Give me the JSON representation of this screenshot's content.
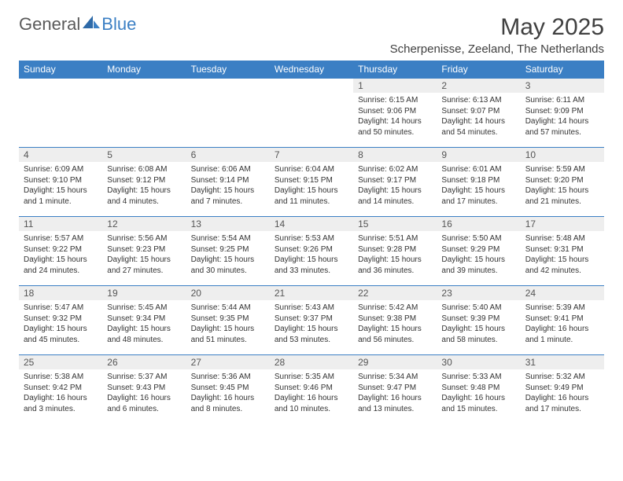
{
  "brand": {
    "general": "General",
    "blue": "Blue",
    "brand_color": "#3b7fc4",
    "text_color": "#5a5a5a"
  },
  "title": {
    "month": "May 2025",
    "location": "Scherpenisse, Zeeland, The Netherlands"
  },
  "colors": {
    "header_bg": "#3b7fc4",
    "header_text": "#ffffff",
    "daynum_bg": "#eeeeee",
    "border": "#3b7fc4",
    "body_text": "#333333"
  },
  "day_headers": [
    "Sunday",
    "Monday",
    "Tuesday",
    "Wednesday",
    "Thursday",
    "Friday",
    "Saturday"
  ],
  "weeks": [
    [
      {
        "day": "",
        "sunrise": "",
        "sunset": "",
        "daylight": ""
      },
      {
        "day": "",
        "sunrise": "",
        "sunset": "",
        "daylight": ""
      },
      {
        "day": "",
        "sunrise": "",
        "sunset": "",
        "daylight": ""
      },
      {
        "day": "",
        "sunrise": "",
        "sunset": "",
        "daylight": ""
      },
      {
        "day": "1",
        "sunrise": "Sunrise: 6:15 AM",
        "sunset": "Sunset: 9:06 PM",
        "daylight": "Daylight: 14 hours and 50 minutes."
      },
      {
        "day": "2",
        "sunrise": "Sunrise: 6:13 AM",
        "sunset": "Sunset: 9:07 PM",
        "daylight": "Daylight: 14 hours and 54 minutes."
      },
      {
        "day": "3",
        "sunrise": "Sunrise: 6:11 AM",
        "sunset": "Sunset: 9:09 PM",
        "daylight": "Daylight: 14 hours and 57 minutes."
      }
    ],
    [
      {
        "day": "4",
        "sunrise": "Sunrise: 6:09 AM",
        "sunset": "Sunset: 9:10 PM",
        "daylight": "Daylight: 15 hours and 1 minute."
      },
      {
        "day": "5",
        "sunrise": "Sunrise: 6:08 AM",
        "sunset": "Sunset: 9:12 PM",
        "daylight": "Daylight: 15 hours and 4 minutes."
      },
      {
        "day": "6",
        "sunrise": "Sunrise: 6:06 AM",
        "sunset": "Sunset: 9:14 PM",
        "daylight": "Daylight: 15 hours and 7 minutes."
      },
      {
        "day": "7",
        "sunrise": "Sunrise: 6:04 AM",
        "sunset": "Sunset: 9:15 PM",
        "daylight": "Daylight: 15 hours and 11 minutes."
      },
      {
        "day": "8",
        "sunrise": "Sunrise: 6:02 AM",
        "sunset": "Sunset: 9:17 PM",
        "daylight": "Daylight: 15 hours and 14 minutes."
      },
      {
        "day": "9",
        "sunrise": "Sunrise: 6:01 AM",
        "sunset": "Sunset: 9:18 PM",
        "daylight": "Daylight: 15 hours and 17 minutes."
      },
      {
        "day": "10",
        "sunrise": "Sunrise: 5:59 AM",
        "sunset": "Sunset: 9:20 PM",
        "daylight": "Daylight: 15 hours and 21 minutes."
      }
    ],
    [
      {
        "day": "11",
        "sunrise": "Sunrise: 5:57 AM",
        "sunset": "Sunset: 9:22 PM",
        "daylight": "Daylight: 15 hours and 24 minutes."
      },
      {
        "day": "12",
        "sunrise": "Sunrise: 5:56 AM",
        "sunset": "Sunset: 9:23 PM",
        "daylight": "Daylight: 15 hours and 27 minutes."
      },
      {
        "day": "13",
        "sunrise": "Sunrise: 5:54 AM",
        "sunset": "Sunset: 9:25 PM",
        "daylight": "Daylight: 15 hours and 30 minutes."
      },
      {
        "day": "14",
        "sunrise": "Sunrise: 5:53 AM",
        "sunset": "Sunset: 9:26 PM",
        "daylight": "Daylight: 15 hours and 33 minutes."
      },
      {
        "day": "15",
        "sunrise": "Sunrise: 5:51 AM",
        "sunset": "Sunset: 9:28 PM",
        "daylight": "Daylight: 15 hours and 36 minutes."
      },
      {
        "day": "16",
        "sunrise": "Sunrise: 5:50 AM",
        "sunset": "Sunset: 9:29 PM",
        "daylight": "Daylight: 15 hours and 39 minutes."
      },
      {
        "day": "17",
        "sunrise": "Sunrise: 5:48 AM",
        "sunset": "Sunset: 9:31 PM",
        "daylight": "Daylight: 15 hours and 42 minutes."
      }
    ],
    [
      {
        "day": "18",
        "sunrise": "Sunrise: 5:47 AM",
        "sunset": "Sunset: 9:32 PM",
        "daylight": "Daylight: 15 hours and 45 minutes."
      },
      {
        "day": "19",
        "sunrise": "Sunrise: 5:45 AM",
        "sunset": "Sunset: 9:34 PM",
        "daylight": "Daylight: 15 hours and 48 minutes."
      },
      {
        "day": "20",
        "sunrise": "Sunrise: 5:44 AM",
        "sunset": "Sunset: 9:35 PM",
        "daylight": "Daylight: 15 hours and 51 minutes."
      },
      {
        "day": "21",
        "sunrise": "Sunrise: 5:43 AM",
        "sunset": "Sunset: 9:37 PM",
        "daylight": "Daylight: 15 hours and 53 minutes."
      },
      {
        "day": "22",
        "sunrise": "Sunrise: 5:42 AM",
        "sunset": "Sunset: 9:38 PM",
        "daylight": "Daylight: 15 hours and 56 minutes."
      },
      {
        "day": "23",
        "sunrise": "Sunrise: 5:40 AM",
        "sunset": "Sunset: 9:39 PM",
        "daylight": "Daylight: 15 hours and 58 minutes."
      },
      {
        "day": "24",
        "sunrise": "Sunrise: 5:39 AM",
        "sunset": "Sunset: 9:41 PM",
        "daylight": "Daylight: 16 hours and 1 minute."
      }
    ],
    [
      {
        "day": "25",
        "sunrise": "Sunrise: 5:38 AM",
        "sunset": "Sunset: 9:42 PM",
        "daylight": "Daylight: 16 hours and 3 minutes."
      },
      {
        "day": "26",
        "sunrise": "Sunrise: 5:37 AM",
        "sunset": "Sunset: 9:43 PM",
        "daylight": "Daylight: 16 hours and 6 minutes."
      },
      {
        "day": "27",
        "sunrise": "Sunrise: 5:36 AM",
        "sunset": "Sunset: 9:45 PM",
        "daylight": "Daylight: 16 hours and 8 minutes."
      },
      {
        "day": "28",
        "sunrise": "Sunrise: 5:35 AM",
        "sunset": "Sunset: 9:46 PM",
        "daylight": "Daylight: 16 hours and 10 minutes."
      },
      {
        "day": "29",
        "sunrise": "Sunrise: 5:34 AM",
        "sunset": "Sunset: 9:47 PM",
        "daylight": "Daylight: 16 hours and 13 minutes."
      },
      {
        "day": "30",
        "sunrise": "Sunrise: 5:33 AM",
        "sunset": "Sunset: 9:48 PM",
        "daylight": "Daylight: 16 hours and 15 minutes."
      },
      {
        "day": "31",
        "sunrise": "Sunrise: 5:32 AM",
        "sunset": "Sunset: 9:49 PM",
        "daylight": "Daylight: 16 hours and 17 minutes."
      }
    ]
  ]
}
